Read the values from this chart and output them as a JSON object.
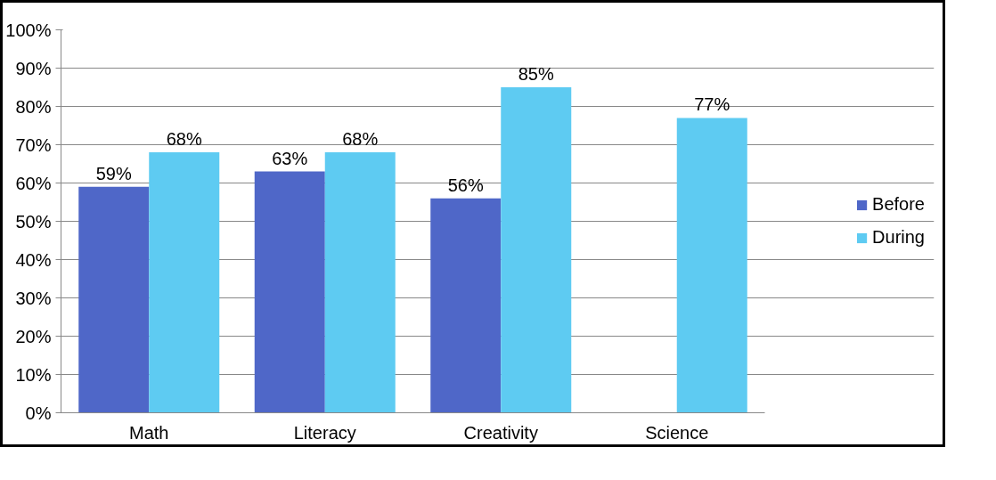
{
  "chart_data": {
    "type": "bar",
    "categories": [
      "Math",
      "Literacy",
      "Creativity",
      "Science"
    ],
    "series": [
      {
        "name": "Before",
        "color": "#4f67c8",
        "values": [
          59,
          63,
          56,
          null
        ],
        "value_labels": [
          "59%",
          "63%",
          "56%",
          null
        ]
      },
      {
        "name": "During",
        "color": "#5ecbf2",
        "values": [
          68,
          68,
          85,
          77
        ],
        "value_labels": [
          "68%",
          "68%",
          "85%",
          "77%"
        ]
      }
    ],
    "ylim": [
      0,
      100
    ],
    "yticks": [
      {
        "value": 0,
        "label": "0%"
      },
      {
        "value": 10,
        "label": "10%"
      },
      {
        "value": 20,
        "label": "20%"
      },
      {
        "value": 30,
        "label": "30%"
      },
      {
        "value": 40,
        "label": "40%"
      },
      {
        "value": 50,
        "label": "50%"
      },
      {
        "value": 60,
        "label": "60%"
      },
      {
        "value": 70,
        "label": "70%"
      },
      {
        "value": 80,
        "label": "80%"
      },
      {
        "value": 90,
        "label": "90%"
      },
      {
        "value": 100,
        "label": "100%"
      }
    ],
    "grid": "y",
    "legend": "right"
  }
}
